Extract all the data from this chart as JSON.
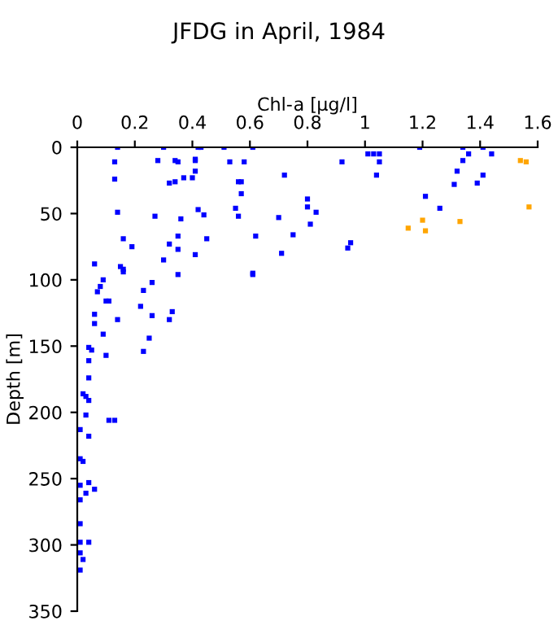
{
  "chart_data": {
    "type": "scatter",
    "title": "JFDG in April, 1984",
    "xlabel": "Chl-$_{}$a [µg/l]",
    "ylabel": "Depth [m]",
    "xlim": [
      0,
      1.6
    ],
    "xticks": [
      0,
      0.2,
      0.4,
      0.6,
      0.8,
      1,
      1.2,
      1.4,
      1.6
    ],
    "ylim": [
      350,
      0
    ],
    "yticks": [
      0,
      50,
      100,
      150,
      200,
      250,
      300,
      350
    ],
    "marker": "square",
    "grid": false,
    "legend": false,
    "series": [
      {
        "color": "#0000ff",
        "x": [
          0.14,
          0.3,
          0.42,
          0.43,
          0.51,
          0.61,
          1.19,
          1.34,
          1.41,
          1.01,
          1.03,
          1.05,
          1.36,
          1.44,
          0.13,
          0.28,
          0.34,
          0.35,
          0.41,
          0.41,
          0.53,
          0.58,
          0.92,
          1.05,
          1.34,
          0.13,
          0.32,
          0.34,
          0.37,
          0.4,
          0.41,
          0.72,
          0.56,
          0.57,
          1.04,
          1.32,
          1.41,
          1.31,
          1.39,
          0.57,
          0.8,
          0.8,
          0.83,
          0.81,
          1.21,
          1.26,
          0.14,
          0.27,
          0.36,
          0.42,
          0.44,
          0.55,
          0.56,
          0.7,
          0.16,
          0.19,
          0.32,
          0.35,
          0.35,
          0.45,
          0.41,
          0.62,
          0.61,
          0.75,
          0.71,
          0.95,
          0.94,
          0.06,
          0.3,
          0.35,
          0.61,
          0.15,
          0.16,
          0.16
        ],
        "values": [
          0,
          0,
          0,
          0,
          0,
          0,
          0,
          0,
          0,
          5,
          5,
          5,
          5,
          5,
          11,
          10,
          10,
          11,
          9,
          10,
          11,
          11,
          11,
          11,
          10,
          24,
          27,
          26,
          23,
          23,
          18,
          21,
          26,
          26,
          21,
          18,
          21,
          28,
          27,
          35,
          39,
          45,
          49,
          58,
          37,
          46,
          49,
          52,
          54,
          47,
          51,
          46,
          52,
          53,
          69,
          75,
          73,
          67,
          77,
          69,
          81,
          67,
          95,
          66,
          80,
          72,
          76,
          88,
          85,
          96,
          96,
          90,
          92,
          94
        ]
      },
      {
        "color": "#ffa500",
        "x": [
          1.54,
          1.56,
          1.57,
          1.15,
          1.2,
          1.21,
          1.33
        ],
        "values": [
          10,
          11,
          45,
          61,
          55,
          63,
          56
        ]
      },
      {
        "color": "#0000ff",
        "x": [
          0.09,
          0.26,
          0.08,
          0.07,
          0.23,
          0.1,
          0.11,
          0.22,
          0.33,
          0.26,
          0.06,
          0.32,
          0.14,
          0.09,
          0.06,
          0.25,
          0.04,
          0.05,
          0.23,
          0.1,
          0.04,
          0.04,
          0.02,
          0.03,
          0.04,
          0.03,
          0.01,
          0.04,
          0.11,
          0.13,
          0.01,
          0.02,
          0.04,
          0.01,
          0.03,
          0.06,
          0.01,
          0.01,
          0.01,
          0.04,
          0.02,
          0.01,
          0.01
        ],
        "values": [
          100,
          102,
          105,
          109,
          108,
          116,
          116,
          120,
          124,
          127,
          126,
          130,
          130,
          141,
          133,
          144,
          151,
          153,
          154,
          157,
          161,
          174,
          186,
          188,
          191,
          202,
          213,
          218,
          206,
          206,
          235,
          237,
          253,
          255,
          261,
          258,
          266,
          284,
          298,
          298,
          311,
          306,
          319
        ]
      }
    ]
  }
}
